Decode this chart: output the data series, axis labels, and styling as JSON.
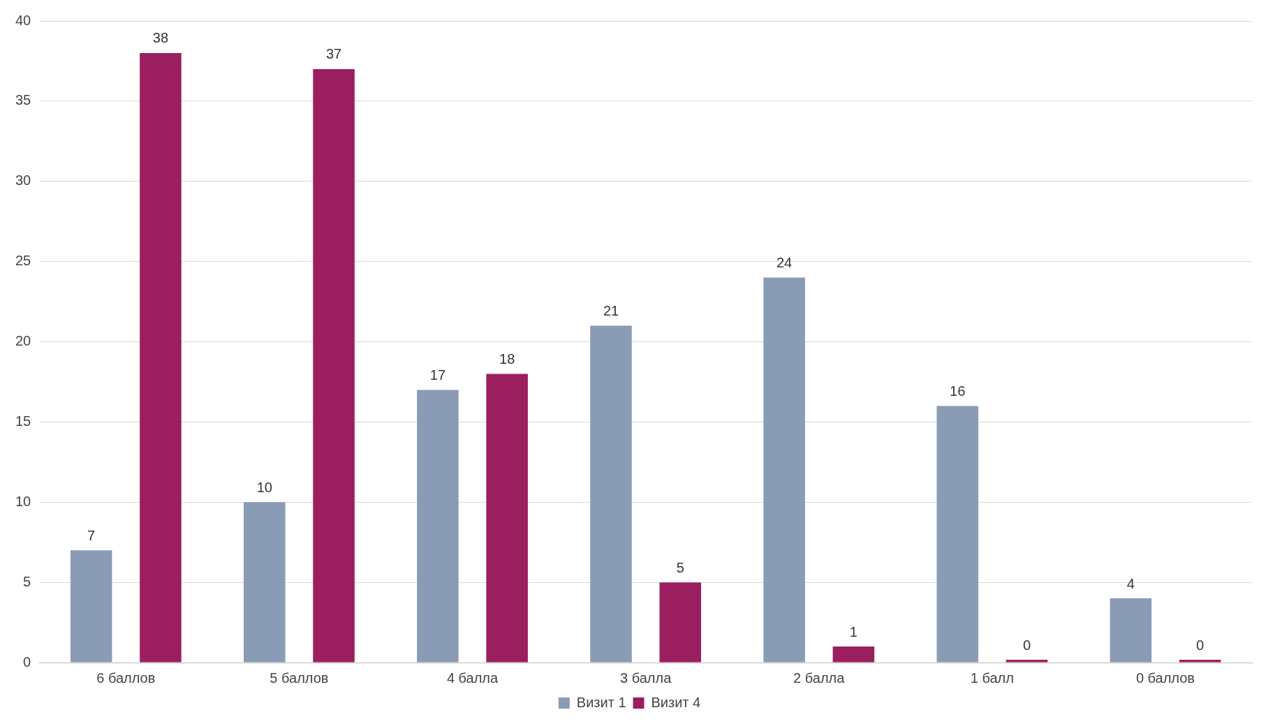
{
  "chart_data": {
    "type": "bar",
    "categories": [
      "6 баллов",
      "5 баллов",
      "4 балла",
      "3 балла",
      "2 балла",
      "1 балл",
      "0 баллов"
    ],
    "series": [
      {
        "name": "Визит 1",
        "color": "#8a9bb5",
        "values": [
          7,
          10,
          17,
          21,
          24,
          16,
          4
        ]
      },
      {
        "name": "Визит 4",
        "color": "#9b1f5e",
        "values": [
          38,
          37,
          18,
          5,
          1,
          0,
          0
        ]
      }
    ],
    "ylim": [
      0,
      40
    ],
    "yticks": [
      0,
      5,
      10,
      15,
      20,
      25,
      30,
      35,
      40
    ],
    "grid": "y",
    "legend": "bottom",
    "data_labels": true
  }
}
